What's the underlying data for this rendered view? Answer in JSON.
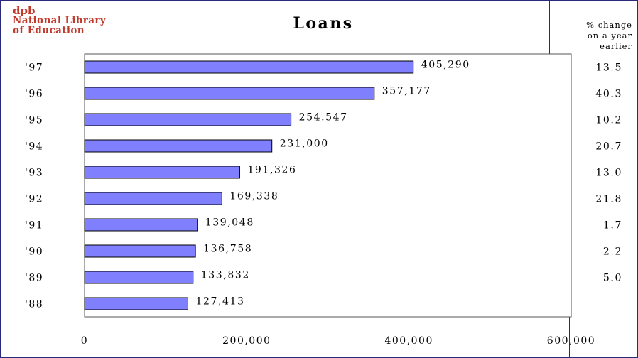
{
  "logo": {
    "line1": "dpb",
    "line2": "National Library",
    "line3": "of Education"
  },
  "pct_header": {
    "line1": "% change",
    "line2": "on a year",
    "line3": "earlier"
  },
  "chart_data": {
    "type": "bar",
    "orientation": "horizontal",
    "title": "Loans",
    "xlabel": "",
    "ylabel": "",
    "xlim": [
      0,
      600000
    ],
    "x_ticks": [
      0,
      200000,
      400000,
      600000
    ],
    "x_tick_labels": [
      "0",
      "200,000",
      "400,000",
      "600,000"
    ],
    "categories": [
      "'97",
      "'96",
      "'95",
      "'94",
      "'93",
      "'92",
      "'91",
      "'90",
      "'89",
      "'88"
    ],
    "values": [
      405290,
      357177,
      254547,
      231000,
      191326,
      169338,
      139048,
      136758,
      133832,
      127413
    ],
    "value_labels": [
      "405,290",
      "357,177",
      "254.547",
      "231,000",
      "191,326",
      "169,338",
      "139,048",
      "136,758",
      "133,832",
      "127,413"
    ],
    "pct_change": [
      "13.5",
      "40.3",
      "10.2",
      "20.7",
      "13.0",
      "21.8",
      "1.7",
      "2.2",
      "5.0",
      ""
    ],
    "grid": false,
    "legend": "none",
    "bar_color": "#8080ff"
  }
}
